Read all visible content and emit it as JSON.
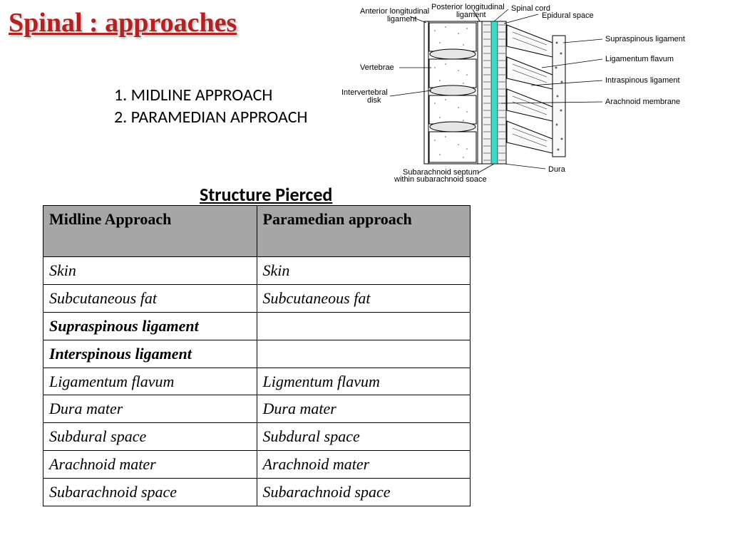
{
  "title": "Spinal : approaches",
  "approaches": {
    "line1": "1. MIDLINE APPROACH",
    "line2": "2. PARAMEDIAN APPROACH"
  },
  "table": {
    "title": "Structure Pierced",
    "header_col1": "Midline Approach",
    "header_col2": "Paramedian approach",
    "rows": [
      {
        "c1": "Skin",
        "c2": "Skin",
        "bold1": false
      },
      {
        "c1": "Subcutaneous fat",
        "c2": "Subcutaneous fat",
        "bold1": false
      },
      {
        "c1": "Supraspinous ligament",
        "c2": "",
        "bold1": true
      },
      {
        "c1": "Interspinous ligament",
        "c2": "",
        "bold1": true
      },
      {
        "c1": "Ligamentum flavum",
        "c2": "Ligmentum flavum",
        "bold1": false
      },
      {
        "c1": "Dura mater",
        "c2": "Dura mater",
        "bold1": false
      },
      {
        "c1": "Subdural space",
        "c2": "Subdural space",
        "bold1": false
      },
      {
        "c1": "Arachnoid mater",
        "c2": "Arachnoid mater",
        "bold1": false
      },
      {
        "c1": "Subarachnoid space",
        "c2": "Subarachnoid space",
        "bold1": false
      }
    ]
  },
  "diagram": {
    "labels": {
      "anterior_longitudinal_ligament": "Anterior longitudinal\nligament",
      "posterior_longitudinal_ligament": "Posterior longitudinal\nligament",
      "spinal_cord": "Spinal cord",
      "epidural_space": "Epidural space",
      "supraspinous_ligament": "Supraspinous ligament",
      "ligamentum_flavum": "Ligamentum flavum",
      "intraspinous_ligament": "Intraspinous ligament",
      "arachnoid_membrane": "Arachnoid membrane",
      "vertebrae": "Vertebrae",
      "intervertebral_disk": "Intervertebral\ndisk",
      "subarachnoid_septum": "Subarachnoid septum\nwithin subarachnoid space",
      "dura": "Dura"
    },
    "colors": {
      "outline": "#000000",
      "fill_light": "#f8f8f8",
      "fill_speckle": "#eeeeee",
      "cord_highlight": "#3dd9c9",
      "background": "#ffffff"
    }
  },
  "styling": {
    "title_color": "#b02323",
    "table_header_bg": "#a6a6a6",
    "table_border": "#000000",
    "body_bg": "#ffffff",
    "title_fontsize": 38,
    "list_fontsize": 24,
    "table_fontsize": 22,
    "table_title_fontsize": 26
  }
}
